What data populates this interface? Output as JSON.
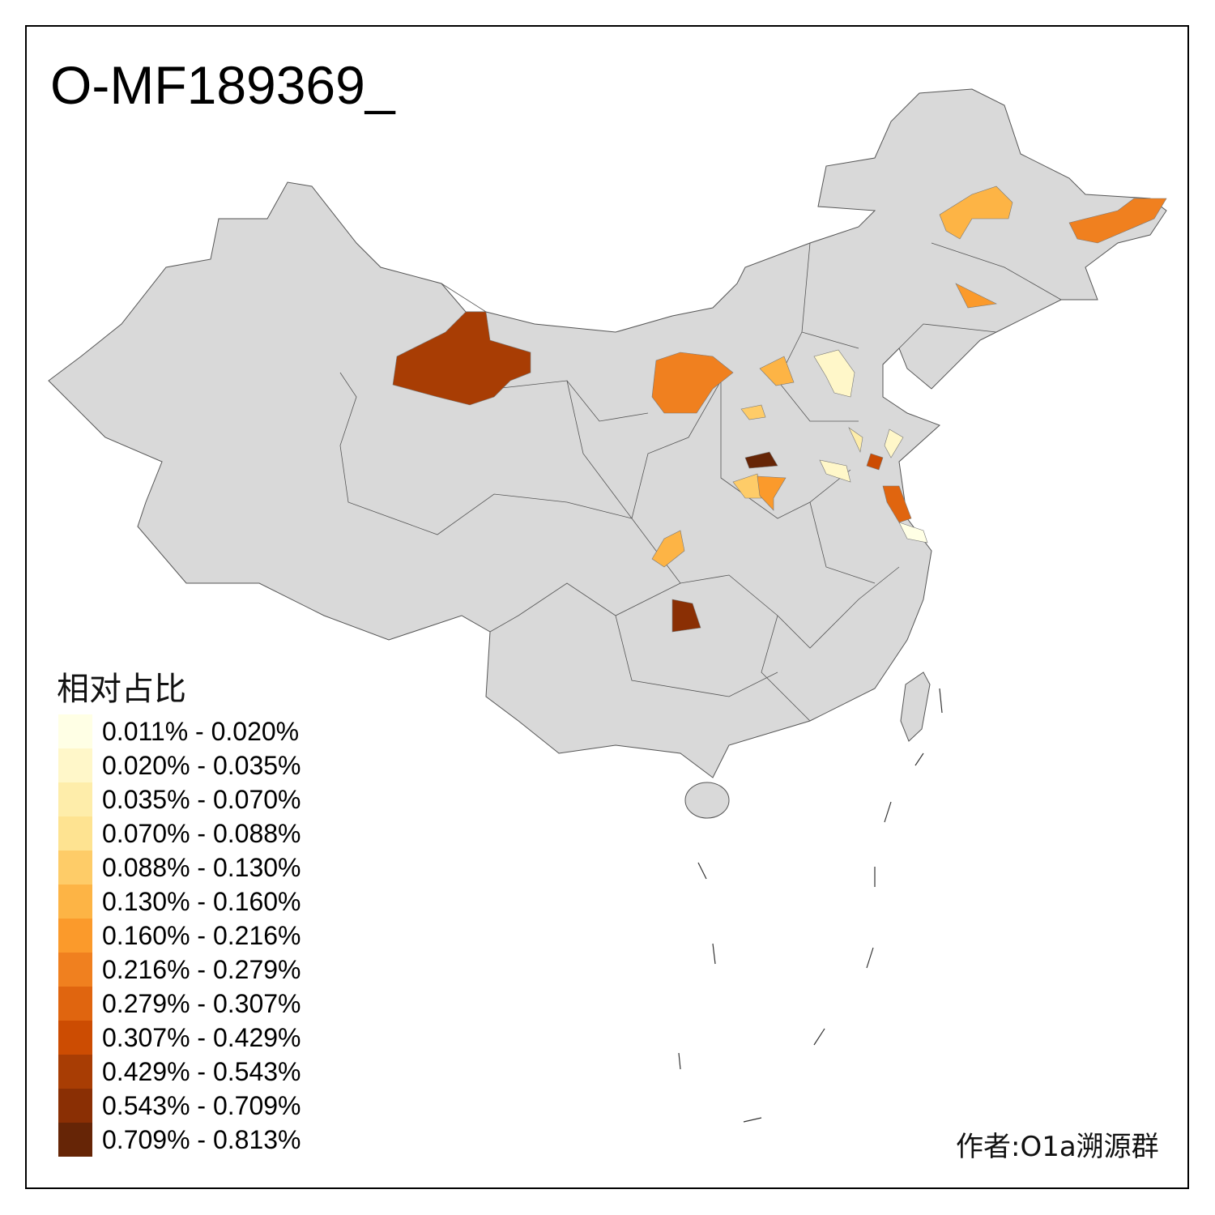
{
  "title": "O-MF189369_",
  "legend": {
    "title": "相对占比",
    "classes": [
      {
        "label": "0.011% - 0.020%",
        "color": "#ffffe5"
      },
      {
        "label": "0.020% - 0.035%",
        "color": "#fff7c9"
      },
      {
        "label": "0.035% - 0.070%",
        "color": "#feedaa"
      },
      {
        "label": "0.070% - 0.088%",
        "color": "#fee391"
      },
      {
        "label": "0.088% - 0.130%",
        "color": "#fecc68"
      },
      {
        "label": "0.130% - 0.160%",
        "color": "#fdb445"
      },
      {
        "label": "0.160% - 0.216%",
        "color": "#fb9a2b"
      },
      {
        "label": "0.216% - 0.279%",
        "color": "#f0801f"
      },
      {
        "label": "0.279% - 0.307%",
        "color": "#e0650f"
      },
      {
        "label": "0.307% - 0.429%",
        "color": "#cc4c02"
      },
      {
        "label": "0.429% - 0.543%",
        "color": "#a83d04"
      },
      {
        "label": "0.543% - 0.709%",
        "color": "#8a2f04"
      },
      {
        "label": "0.709% - 0.813%",
        "color": "#662506"
      }
    ]
  },
  "map": {
    "base_color": "#d9d9d9",
    "border_color": "#555555",
    "highlighted_region_classes": [
      10,
      7,
      5,
      7,
      6,
      5,
      1,
      4,
      12,
      4,
      6,
      2,
      1,
      9,
      8,
      1,
      0,
      5,
      11
    ]
  },
  "author": "作者:O1a溯源群"
}
